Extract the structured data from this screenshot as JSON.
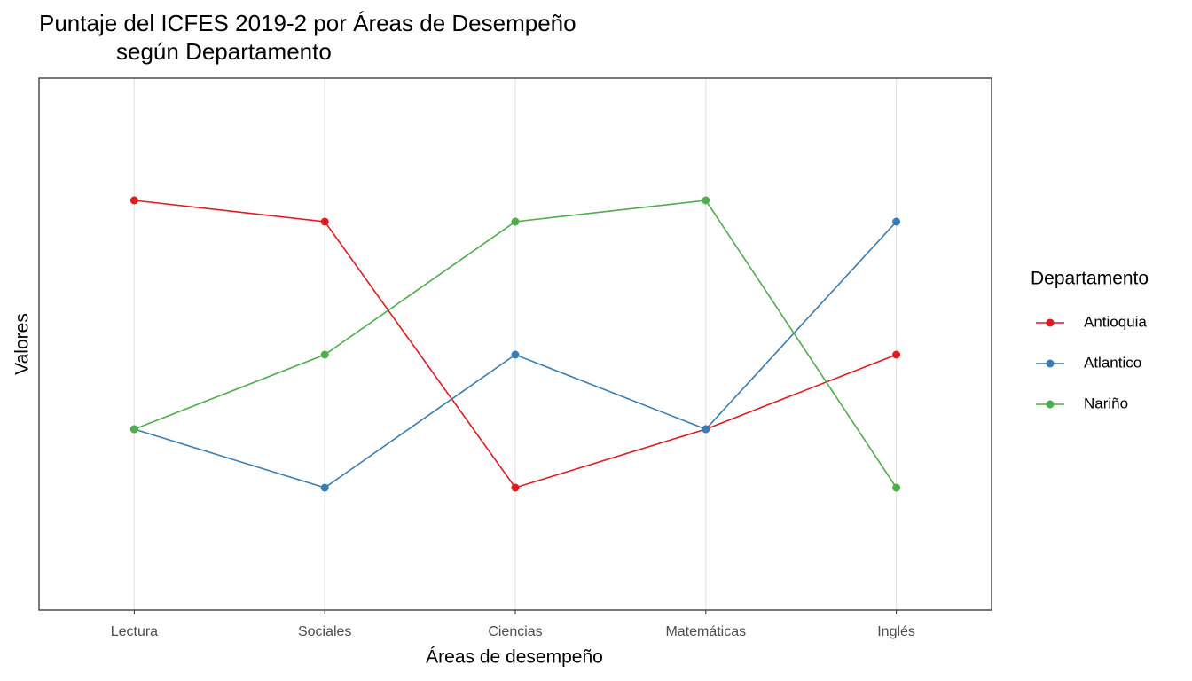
{
  "chart_data": {
    "type": "line",
    "title": [
      "Puntaje del ICFES 2019-2 por Áreas de Desempeño",
      "según Departamento"
    ],
    "x_label": "Áreas de desempeño",
    "y_label": "Valores",
    "categories": [
      "Lectura",
      "Sociales",
      "Ciencias",
      "Matemáticas",
      "Inglés"
    ],
    "series": [
      {
        "name": "Antioquia",
        "color": "#e41a1c",
        "values": [
          0.77,
          0.73,
          0.23,
          0.34,
          0.48
        ]
      },
      {
        "name": "Atlantico",
        "color": "#377eb8",
        "values": [
          0.34,
          0.23,
          0.48,
          0.34,
          0.73
        ]
      },
      {
        "name": "Nariño",
        "color": "#4daf4a",
        "values": [
          0.34,
          0.48,
          0.73,
          0.77,
          0.23
        ]
      }
    ],
    "ylim": [
      0,
      1
    ],
    "grid": true,
    "legend_title": "Departamento",
    "legend_position": "right"
  }
}
